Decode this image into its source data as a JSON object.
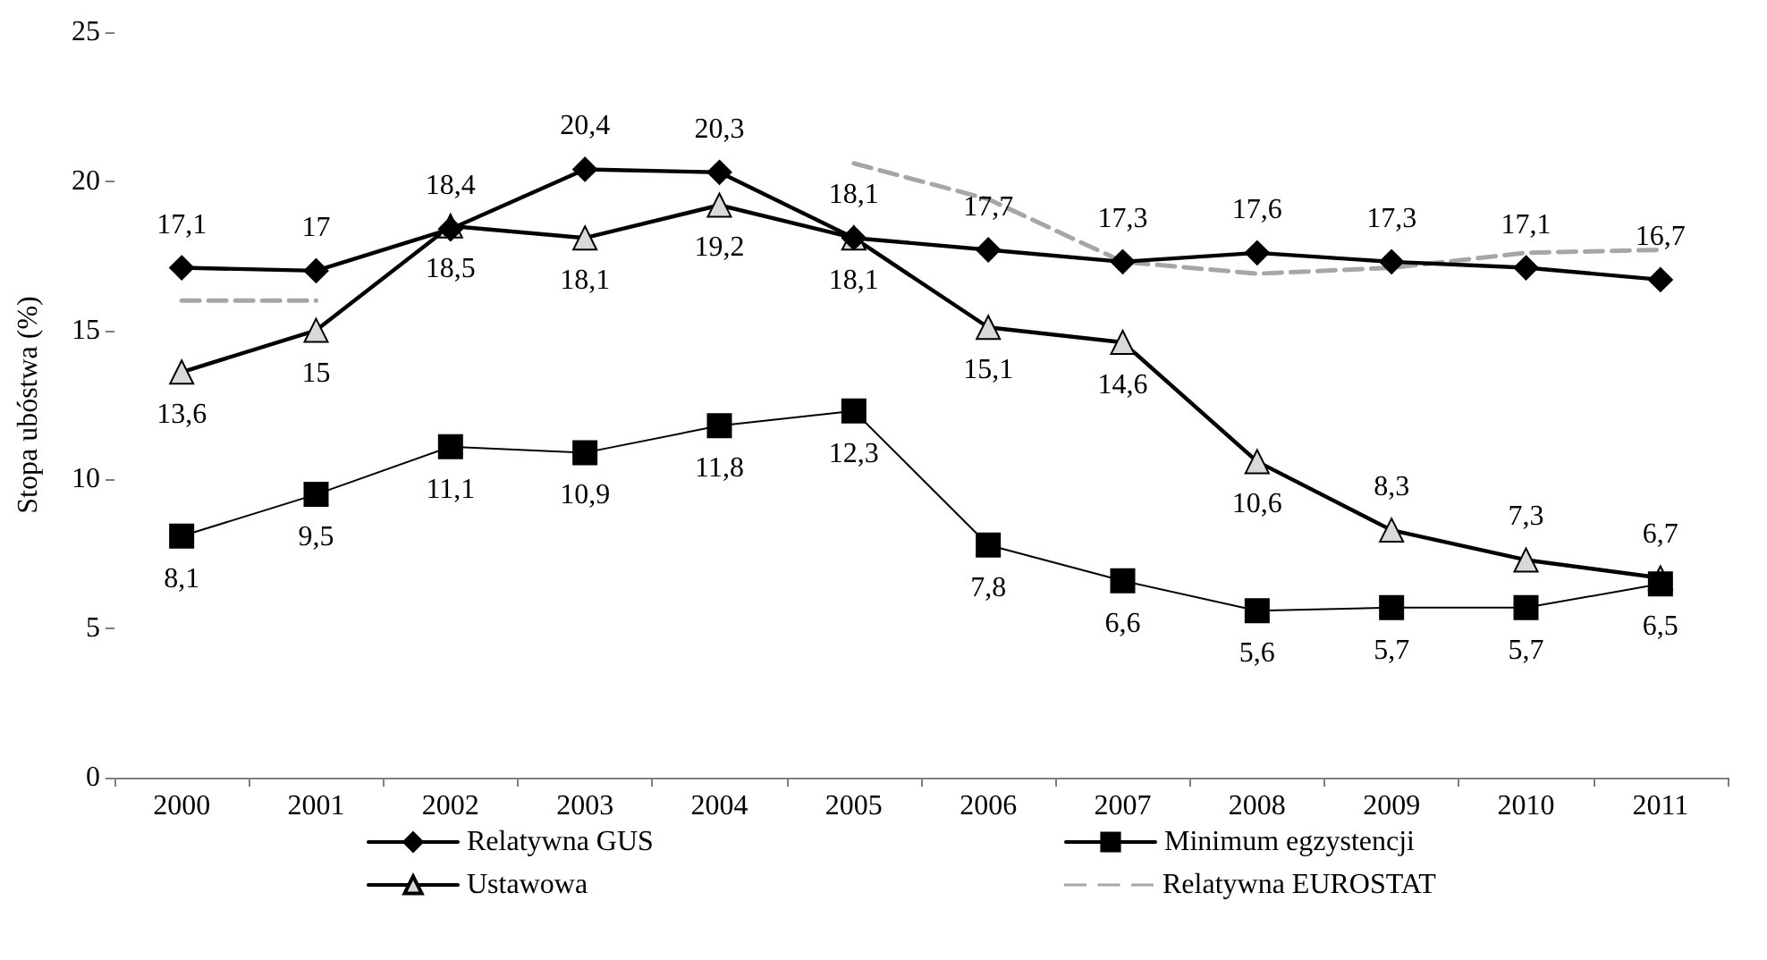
{
  "chart_data": {
    "type": "line",
    "ylabel": "Stopa ubóstwa (%)",
    "categories": [
      "2000",
      "2001",
      "2002",
      "2003",
      "2004",
      "2005",
      "2006",
      "2007",
      "2008",
      "2009",
      "2010",
      "2011"
    ],
    "series": [
      {
        "name": "Relatywna GUS",
        "color": "#000000",
        "marker": "diamond",
        "line_style": "solid",
        "values": [
          17.1,
          17,
          18.4,
          20.4,
          20.3,
          18.1,
          17.7,
          17.3,
          17.6,
          17.3,
          17.1,
          16.7
        ],
        "value_labels": [
          "17,1",
          "17",
          "18,4",
          "20,4",
          "20,3",
          "18,1",
          "17,7",
          "17,3",
          "17,6",
          "17,3",
          "17,1",
          "16,7"
        ]
      },
      {
        "name": "Minimum egzystencji",
        "color": "#000000",
        "marker": "square",
        "line_style": "solid",
        "values": [
          8.1,
          9.5,
          11.1,
          10.9,
          11.8,
          12.3,
          7.8,
          6.6,
          5.6,
          5.7,
          5.7,
          6.5
        ],
        "value_labels": [
          "8,1",
          "9,5",
          "11,1",
          "10,9",
          "11,8",
          "12,3",
          "7,8",
          "6,6",
          "5,6",
          "5,7",
          "5,7",
          "6,5"
        ]
      },
      {
        "name": "Ustawowa",
        "color": "#000000",
        "marker": "triangle",
        "line_style": "solid",
        "values": [
          13.6,
          15,
          18.5,
          18.1,
          19.2,
          18.1,
          15.1,
          14.6,
          10.6,
          8.3,
          7.3,
          6.7
        ],
        "value_labels": [
          "13,6",
          "15",
          "18,5",
          "18,1",
          "19,2",
          "18,1",
          "15,1",
          "14,6",
          "10,6",
          "8,3",
          "7,3",
          "6,7"
        ]
      },
      {
        "name": "Relatywna EUROSTAT",
        "color": "#a6a6a6",
        "marker": "none",
        "line_style": "dashed",
        "values": [
          16.0,
          16.0,
          null,
          null,
          null,
          20.6,
          19.4,
          17.3,
          16.9,
          17.1,
          17.6,
          17.7
        ]
      }
    ],
    "ylim": [
      0,
      25
    ],
    "yticks": [
      0,
      5,
      10,
      15,
      20,
      25
    ],
    "grid": false,
    "legend": "bottom"
  }
}
